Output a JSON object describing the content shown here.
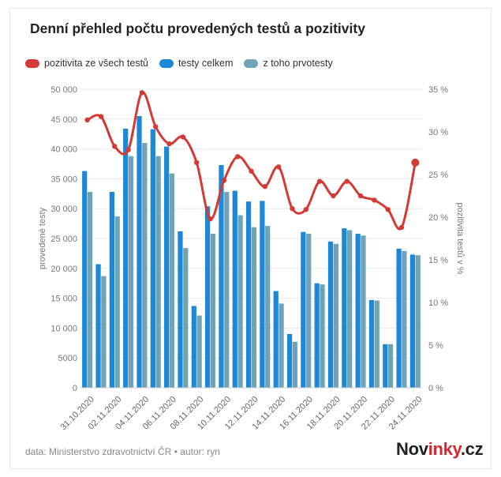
{
  "chart_data": {
    "type": "bar",
    "title": "Denní přehled počtu provedených testů a pozitivity",
    "ylabel_left": "provedené testy",
    "ylabel_right": "pozitivita testů v %",
    "ylim_left": [
      0,
      50000
    ],
    "ylim_right": [
      0,
      35
    ],
    "yticks_left": [
      "0",
      "5000",
      "10 000",
      "15 000",
      "20 000",
      "25 000",
      "30 000",
      "35 000",
      "40 000",
      "45 000",
      "50 000"
    ],
    "yticks_right": [
      "0 %",
      "5 %",
      "10 %",
      "15 %",
      "20 %",
      "25 %",
      "30 %",
      "35 %"
    ],
    "categories": [
      "31.10.2020",
      "01.11.2020",
      "02.11.2020",
      "03.11.2020",
      "04.11.2020",
      "05.11.2020",
      "06.11.2020",
      "07.11.2020",
      "08.11.2020",
      "09.11.2020",
      "10.11.2020",
      "11.11.2020",
      "12.11.2020",
      "13.11.2020",
      "14.11.2020",
      "15.11.2020",
      "16.11.2020",
      "17.11.2020",
      "18.11.2020",
      "19.11.2020",
      "20.11.2020",
      "21.11.2020",
      "22.11.2020",
      "23.11.2020",
      "24.11.2020"
    ],
    "xtick_labels": [
      "31.10.2020",
      "02.11.2020",
      "04.11.2020",
      "06.11.2020",
      "08.11.2020",
      "10.11.2020",
      "12.11.2020",
      "14.11.2020",
      "16.11.2020",
      "18.11.2020",
      "20.11.2020",
      "22.11.2020",
      "24.11.2020"
    ],
    "grid": true,
    "legend_position": "top-left",
    "series": [
      {
        "name": "testy celkem",
        "type": "bar",
        "axis": "left",
        "color": "#1e88d8",
        "values": [
          36300,
          20700,
          32800,
          43400,
          45500,
          43300,
          40400,
          26200,
          13700,
          30400,
          37300,
          33000,
          31200,
          31300,
          16200,
          9000,
          26100,
          17500,
          24500,
          26700,
          25800,
          14700,
          7300,
          23300,
          22300
        ]
      },
      {
        "name": "z toho prvotesty",
        "type": "bar",
        "axis": "left",
        "color": "#6fa3b8",
        "values": [
          32800,
          18700,
          28700,
          38800,
          41000,
          38800,
          35900,
          23400,
          12100,
          25800,
          32800,
          28900,
          26900,
          27100,
          14100,
          7700,
          25800,
          17300,
          24100,
          26400,
          25500,
          14600,
          7300,
          22900,
          22200
        ]
      },
      {
        "name": "pozitivita ze všech testů",
        "type": "line",
        "axis": "right",
        "color": "#d33a35",
        "values": [
          31.4,
          31.8,
          28.3,
          27.9,
          34.6,
          30.6,
          28.6,
          29.4,
          26.4,
          19.8,
          24.3,
          27.1,
          25.4,
          23.6,
          25.9,
          21.0,
          20.9,
          24.2,
          22.5,
          24.2,
          22.5,
          22.0,
          20.9,
          18.8,
          26.4
        ]
      }
    ]
  },
  "legend": {
    "positivity": "pozitivita ze všech testů",
    "total": "testy celkem",
    "first": "z toho prvotesty"
  },
  "colors": {
    "positivity": "#d33a35",
    "total": "#1e88d8",
    "first": "#6fa3b8"
  },
  "footer": {
    "source": "data: Ministerstvo zdravotnictví ČR • autor: ryn",
    "brand_prefix": "Nov",
    "brand_accent": "inky",
    "brand_suffix": ".cz"
  }
}
